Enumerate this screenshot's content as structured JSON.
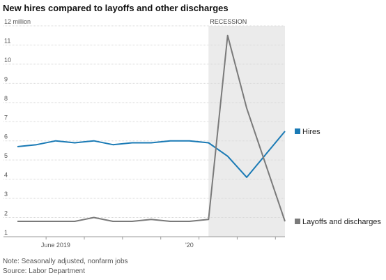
{
  "title": "New hires compared to layoffs and other discharges",
  "chart_data": {
    "type": "line",
    "title": "New hires compared to layoffs and other discharges",
    "unit": "million",
    "ylim": [
      1,
      12
    ],
    "yticks": [
      1,
      2,
      3,
      4,
      5,
      6,
      7,
      8,
      9,
      10,
      11,
      12
    ],
    "ytick_labels": [
      "1",
      "2",
      "3",
      "4",
      "5",
      "6",
      "7",
      "8",
      "9",
      "10",
      "11",
      "12 million"
    ],
    "x": [
      "2019-04",
      "2019-05",
      "2019-06",
      "2019-07",
      "2019-08",
      "2019-09",
      "2019-10",
      "2019-11",
      "2019-12",
      "2020-01",
      "2020-02",
      "2020-03",
      "2020-04",
      "2020-05",
      "2020-06"
    ],
    "xtick_labels": [
      {
        "x": "2019-06",
        "label": "June 2019"
      },
      {
        "x": "2020-01",
        "label": "'20"
      }
    ],
    "series": [
      {
        "name": "Hires",
        "color": "#1a7ab5",
        "values": [
          5.7,
          5.8,
          6.0,
          5.9,
          6.0,
          5.8,
          5.9,
          5.9,
          6.0,
          6.0,
          5.9,
          5.2,
          4.1,
          null,
          6.5
        ]
      },
      {
        "name": "Layoffs and discharges",
        "color": "#7a7a7a",
        "values": [
          1.8,
          1.8,
          1.8,
          1.8,
          2.0,
          1.8,
          1.8,
          1.9,
          1.8,
          1.8,
          1.9,
          11.5,
          7.7,
          null,
          1.8
        ]
      }
    ],
    "shaded_regions": [
      {
        "label": "RECESSION",
        "from": "2020-02",
        "to": "2020-06"
      }
    ],
    "grid": true,
    "legend": "direct labels at line ends"
  },
  "notes": {
    "note": "Note: Seasonally adjusted, nonfarm jobs",
    "source": "Source: Labor Department"
  }
}
